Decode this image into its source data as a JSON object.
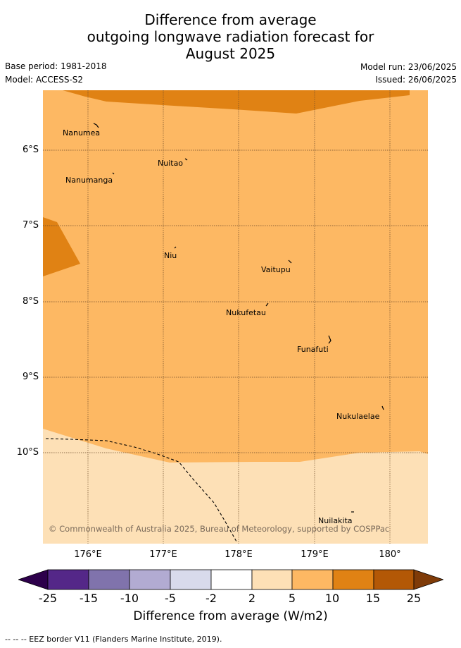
{
  "title": {
    "line1": "Difference from average",
    "line2": "outgoing longwave radiation forecast for",
    "line3": "August 2025"
  },
  "meta": {
    "base_period": "Base period: 1981-2018",
    "model": "Model: ACCESS-S2",
    "model_run": "Model run: 23/06/2025",
    "issued": "Issued: 26/06/2025"
  },
  "map": {
    "lat_labels": [
      "6°S",
      "7°S",
      "8°S",
      "9°S",
      "10°S"
    ],
    "lon_labels": [
      "176°E",
      "177°E",
      "178°E",
      "179°E",
      "180°"
    ],
    "places": [
      {
        "name": "Nanumea"
      },
      {
        "name": "Nuitao"
      },
      {
        "name": "Nanumanga"
      },
      {
        "name": "Niu"
      },
      {
        "name": "Vaitupu"
      },
      {
        "name": "Nukufetau"
      },
      {
        "name": "Funafuti"
      },
      {
        "name": "Nukulaelae"
      },
      {
        "name": "Nuilakita"
      }
    ],
    "copyright": "© Commonwealth of Australia 2025, Bureau of Meteorology, supported by COSPPac",
    "colors": {
      "band_2_5": "#fde0b6",
      "band_5_10": "#fdb863",
      "band_10_15": "#e08214",
      "band_15_25": "#b35806",
      "band_gt_25": "#7f3b08"
    }
  },
  "colorbar": {
    "labels": [
      "-25",
      "-15",
      "-10",
      "-5",
      "-2",
      "2",
      "5",
      "10",
      "15",
      "25"
    ],
    "colors": [
      "#2d004b",
      "#542788",
      "#8073ac",
      "#b2abd2",
      "#d8daeb",
      "#ffffff",
      "#fde0b6",
      "#fdb863",
      "#e08214",
      "#b35806",
      "#7f3b08"
    ],
    "title": "Difference from average (W/m2)"
  },
  "footnote": "--  --  -- EEZ border V11 (Flanders Marine Institute, 2019)."
}
